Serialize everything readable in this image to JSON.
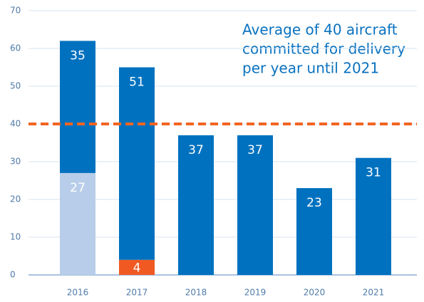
{
  "chart_data": {
    "type": "stacked_bar",
    "categories": [
      "2016",
      "2017",
      "2018",
      "2019",
      "2020",
      "2021"
    ],
    "series": [
      {
        "color": "#b8cde9",
        "values": [
          27,
          null,
          null,
          null,
          null,
          null
        ]
      },
      {
        "color": "#f05a22",
        "values": [
          null,
          4,
          null,
          null,
          null,
          null
        ]
      },
      {
        "color": "#0071bf",
        "values": [
          35,
          51,
          37,
          37,
          23,
          31
        ]
      }
    ],
    "ylim": [
      0,
      70
    ],
    "yticks": [
      0,
      10,
      20,
      30,
      40,
      50,
      60,
      70
    ],
    "grid": true,
    "reference_line": {
      "value": 40,
      "color": "#f26522"
    },
    "annotation": [
      "Average of 40 aircraft",
      "committed for delivery",
      "per year until 2021"
    ]
  }
}
